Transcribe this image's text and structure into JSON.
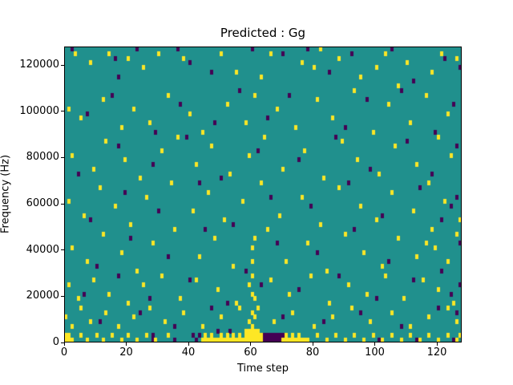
{
  "title": "Predicted : Gg",
  "chart_data": {
    "type": "heatmap",
    "title": "Predicted : Gg",
    "xlabel": "Time step",
    "ylabel": "Frequency (Hz)",
    "x_range": [
      0,
      128
    ],
    "y_range": [
      0,
      128000
    ],
    "x_ticks": [
      0,
      20,
      40,
      60,
      80,
      100,
      120
    ],
    "y_ticks": [
      0,
      20000,
      40000,
      60000,
      80000,
      100000,
      120000
    ],
    "grid_cols": 128,
    "grid_rows": 64,
    "legend": "none",
    "grid": false,
    "colors": {
      "background_value": "#20908d",
      "high_value": "#fde725",
      "low_value": "#440154",
      "text": "#000000"
    },
    "yellow_cells": [
      [
        3,
        62
      ],
      [
        8,
        60
      ],
      [
        14,
        62
      ],
      [
        20,
        61
      ],
      [
        25,
        59
      ],
      [
        30,
        62
      ],
      [
        38,
        61
      ],
      [
        50,
        62
      ],
      [
        55,
        58
      ],
      [
        63,
        57
      ],
      [
        66,
        62
      ],
      [
        76,
        60
      ],
      [
        80,
        59
      ],
      [
        82,
        63
      ],
      [
        88,
        61
      ],
      [
        95,
        57
      ],
      [
        100,
        59
      ],
      [
        103,
        62
      ],
      [
        107,
        55
      ],
      [
        110,
        60
      ],
      [
        118,
        58
      ],
      [
        121,
        62
      ],
      [
        126,
        61
      ],
      [
        1,
        50
      ],
      [
        5,
        48
      ],
      [
        12,
        52
      ],
      [
        18,
        46
      ],
      [
        22,
        50
      ],
      [
        27,
        47
      ],
      [
        33,
        53
      ],
      [
        40,
        49
      ],
      [
        44,
        45
      ],
      [
        52,
        51
      ],
      [
        58,
        47
      ],
      [
        61,
        53
      ],
      [
        68,
        50
      ],
      [
        74,
        46
      ],
      [
        81,
        52
      ],
      [
        86,
        48
      ],
      [
        93,
        54
      ],
      [
        99,
        45
      ],
      [
        104,
        51
      ],
      [
        111,
        47
      ],
      [
        116,
        53
      ],
      [
        123,
        49
      ],
      [
        2,
        40
      ],
      [
        9,
        37
      ],
      [
        13,
        43
      ],
      [
        19,
        39
      ],
      [
        24,
        35
      ],
      [
        31,
        41
      ],
      [
        36,
        44
      ],
      [
        42,
        38
      ],
      [
        47,
        42
      ],
      [
        53,
        36
      ],
      [
        59,
        40
      ],
      [
        64,
        44
      ],
      [
        70,
        37
      ],
      [
        77,
        41
      ],
      [
        83,
        35
      ],
      [
        89,
        43
      ],
      [
        94,
        39
      ],
      [
        101,
        36
      ],
      [
        106,
        42
      ],
      [
        113,
        38
      ],
      [
        120,
        44
      ],
      [
        124,
        40
      ],
      [
        1,
        30
      ],
      [
        6,
        27
      ],
      [
        11,
        33
      ],
      [
        16,
        29
      ],
      [
        21,
        25
      ],
      [
        26,
        31
      ],
      [
        34,
        34
      ],
      [
        41,
        28
      ],
      [
        46,
        32
      ],
      [
        51,
        26
      ],
      [
        57,
        30
      ],
      [
        63,
        34
      ],
      [
        69,
        27
      ],
      [
        76,
        31
      ],
      [
        82,
        25
      ],
      [
        88,
        33
      ],
      [
        95,
        29
      ],
      [
        100,
        26
      ],
      [
        105,
        32
      ],
      [
        112,
        28
      ],
      [
        117,
        34
      ],
      [
        122,
        30
      ],
      [
        127,
        26
      ],
      [
        2,
        20
      ],
      [
        7,
        17
      ],
      [
        12,
        23
      ],
      [
        18,
        19
      ],
      [
        23,
        15
      ],
      [
        28,
        21
      ],
      [
        35,
        24
      ],
      [
        43,
        18
      ],
      [
        48,
        22
      ],
      [
        54,
        16
      ],
      [
        60,
        20
      ],
      [
        60,
        17
      ],
      [
        61,
        22
      ],
      [
        65,
        24
      ],
      [
        71,
        17
      ],
      [
        78,
        21
      ],
      [
        84,
        15
      ],
      [
        90,
        23
      ],
      [
        96,
        19
      ],
      [
        102,
        16
      ],
      [
        107,
        22
      ],
      [
        113,
        18
      ],
      [
        116,
        21
      ],
      [
        118,
        24
      ],
      [
        119,
        20
      ],
      [
        123,
        17
      ],
      [
        126,
        23
      ],
      [
        1,
        12
      ],
      [
        4,
        9
      ],
      [
        9,
        13
      ],
      [
        14,
        10
      ],
      [
        20,
        8
      ],
      [
        25,
        12
      ],
      [
        31,
        14
      ],
      [
        37,
        9
      ],
      [
        42,
        13
      ],
      [
        49,
        11
      ],
      [
        55,
        8
      ],
      [
        59,
        12
      ],
      [
        60,
        10
      ],
      [
        60,
        14
      ],
      [
        61,
        9
      ],
      [
        66,
        13
      ],
      [
        72,
        10
      ],
      [
        79,
        14
      ],
      [
        85,
        8
      ],
      [
        91,
        12
      ],
      [
        97,
        10
      ],
      [
        103,
        14
      ],
      [
        109,
        9
      ],
      [
        115,
        13
      ],
      [
        120,
        11
      ],
      [
        125,
        8
      ],
      [
        0,
        5
      ],
      [
        2,
        3
      ],
      [
        5,
        7
      ],
      [
        8,
        4
      ],
      [
        13,
        6
      ],
      [
        17,
        3
      ],
      [
        22,
        5
      ],
      [
        27,
        7
      ],
      [
        32,
        4
      ],
      [
        38,
        6
      ],
      [
        44,
        3
      ],
      [
        50,
        5
      ],
      [
        56,
        7
      ],
      [
        59,
        4
      ],
      [
        60,
        6
      ],
      [
        60,
        3
      ],
      [
        61,
        5
      ],
      [
        62,
        7
      ],
      [
        67,
        4
      ],
      [
        73,
        6
      ],
      [
        80,
        3
      ],
      [
        86,
        5
      ],
      [
        92,
        7
      ],
      [
        98,
        4
      ],
      [
        105,
        6
      ],
      [
        111,
        3
      ],
      [
        117,
        5
      ],
      [
        123,
        7
      ],
      [
        126,
        4
      ],
      [
        0,
        0
      ],
      [
        0,
        1
      ],
      [
        1,
        0
      ],
      [
        1,
        1
      ],
      [
        2,
        0
      ],
      [
        5,
        1
      ],
      [
        7,
        0
      ],
      [
        10,
        1
      ],
      [
        12,
        0
      ],
      [
        15,
        1
      ],
      [
        18,
        0
      ],
      [
        20,
        1
      ],
      [
        23,
        0
      ],
      [
        26,
        1
      ],
      [
        29,
        0
      ],
      [
        33,
        1
      ],
      [
        44,
        0
      ],
      [
        45,
        0
      ],
      [
        45,
        1
      ],
      [
        46,
        0
      ],
      [
        47,
        0
      ],
      [
        47,
        1
      ],
      [
        48,
        0
      ],
      [
        49,
        0
      ],
      [
        50,
        0
      ],
      [
        50,
        1
      ],
      [
        51,
        0
      ],
      [
        52,
        0
      ],
      [
        52,
        1
      ],
      [
        53,
        0
      ],
      [
        54,
        0
      ],
      [
        54,
        1
      ],
      [
        55,
        0
      ],
      [
        56,
        0
      ],
      [
        56,
        1
      ],
      [
        57,
        0
      ],
      [
        58,
        0
      ],
      [
        58,
        1
      ],
      [
        58,
        2
      ],
      [
        59,
        0
      ],
      [
        59,
        1
      ],
      [
        59,
        2
      ],
      [
        60,
        0
      ],
      [
        60,
        1
      ],
      [
        60,
        2
      ],
      [
        61,
        0
      ],
      [
        61,
        1
      ],
      [
        61,
        2
      ],
      [
        62,
        0
      ],
      [
        62,
        1
      ],
      [
        62,
        2
      ],
      [
        63,
        0
      ],
      [
        63,
        1
      ],
      [
        70,
        0
      ],
      [
        71,
        0
      ],
      [
        71,
        1
      ],
      [
        72,
        0
      ],
      [
        73,
        0
      ],
      [
        73,
        1
      ],
      [
        74,
        0
      ],
      [
        75,
        0
      ],
      [
        75,
        1
      ],
      [
        76,
        0
      ],
      [
        77,
        0
      ],
      [
        78,
        0
      ],
      [
        81,
        1
      ],
      [
        84,
        0
      ],
      [
        87,
        1
      ],
      [
        90,
        0
      ],
      [
        93,
        1
      ],
      [
        96,
        0
      ],
      [
        99,
        1
      ],
      [
        102,
        0
      ],
      [
        105,
        1
      ],
      [
        108,
        0
      ],
      [
        111,
        1
      ],
      [
        114,
        0
      ],
      [
        117,
        1
      ],
      [
        120,
        0
      ],
      [
        123,
        1
      ],
      [
        126,
        0
      ],
      [
        127,
        1
      ]
    ],
    "purple_cells": [
      [
        2,
        63
      ],
      [
        16,
        61
      ],
      [
        17,
        57
      ],
      [
        23,
        63
      ],
      [
        36,
        63
      ],
      [
        40,
        60
      ],
      [
        47,
        58
      ],
      [
        60,
        63
      ],
      [
        70,
        62
      ],
      [
        78,
        63
      ],
      [
        85,
        58
      ],
      [
        92,
        62
      ],
      [
        105,
        63
      ],
      [
        112,
        56
      ],
      [
        122,
        61
      ],
      [
        127,
        59
      ],
      [
        7,
        49
      ],
      [
        15,
        53
      ],
      [
        29,
        45
      ],
      [
        37,
        51
      ],
      [
        48,
        47
      ],
      [
        56,
        54
      ],
      [
        65,
        48
      ],
      [
        72,
        53
      ],
      [
        90,
        46
      ],
      [
        97,
        52
      ],
      [
        108,
        54
      ],
      [
        119,
        45
      ],
      [
        125,
        51
      ],
      [
        4,
        36
      ],
      [
        17,
        42
      ],
      [
        28,
        38
      ],
      [
        39,
        44
      ],
      [
        50,
        35
      ],
      [
        62,
        41
      ],
      [
        75,
        39
      ],
      [
        87,
        44
      ],
      [
        98,
        37
      ],
      [
        110,
        43
      ],
      [
        118,
        36
      ],
      [
        126,
        42
      ],
      [
        8,
        26
      ],
      [
        19,
        32
      ],
      [
        30,
        28
      ],
      [
        43,
        34
      ],
      [
        54,
        25
      ],
      [
        66,
        31
      ],
      [
        79,
        29
      ],
      [
        91,
        34
      ],
      [
        102,
        27
      ],
      [
        114,
        33
      ],
      [
        121,
        26
      ],
      [
        124,
        29
      ],
      [
        126,
        31
      ],
      [
        10,
        16
      ],
      [
        21,
        22
      ],
      [
        33,
        18
      ],
      [
        45,
        24
      ],
      [
        58,
        15
      ],
      [
        68,
        21
      ],
      [
        81,
        19
      ],
      [
        93,
        24
      ],
      [
        104,
        17
      ],
      [
        121,
        15
      ],
      [
        127,
        21
      ],
      [
        6,
        10
      ],
      [
        17,
        14
      ],
      [
        27,
        9
      ],
      [
        40,
        13
      ],
      [
        52,
        8
      ],
      [
        63,
        12
      ],
      [
        75,
        11
      ],
      [
        88,
        14
      ],
      [
        100,
        9
      ],
      [
        112,
        13
      ],
      [
        124,
        10
      ],
      [
        127,
        12
      ],
      [
        11,
        4
      ],
      [
        24,
        6
      ],
      [
        35,
        3
      ],
      [
        47,
        7
      ],
      [
        70,
        5
      ],
      [
        83,
        4
      ],
      [
        95,
        6
      ],
      [
        108,
        3
      ],
      [
        120,
        7
      ],
      [
        126,
        6
      ],
      [
        64,
        0
      ],
      [
        64,
        1
      ],
      [
        65,
        0
      ],
      [
        65,
        1
      ],
      [
        66,
        0
      ],
      [
        66,
        1
      ],
      [
        67,
        0
      ],
      [
        67,
        1
      ],
      [
        68,
        0
      ],
      [
        68,
        1
      ],
      [
        69,
        0
      ],
      [
        69,
        1
      ],
      [
        70,
        1
      ],
      [
        28,
        0
      ],
      [
        28,
        1
      ],
      [
        35,
        0
      ],
      [
        41,
        1
      ],
      [
        42,
        0
      ],
      [
        43,
        1
      ],
      [
        49,
        2
      ],
      [
        53,
        2
      ],
      [
        101,
        0
      ],
      [
        113,
        0
      ],
      [
        125,
        0
      ]
    ]
  }
}
